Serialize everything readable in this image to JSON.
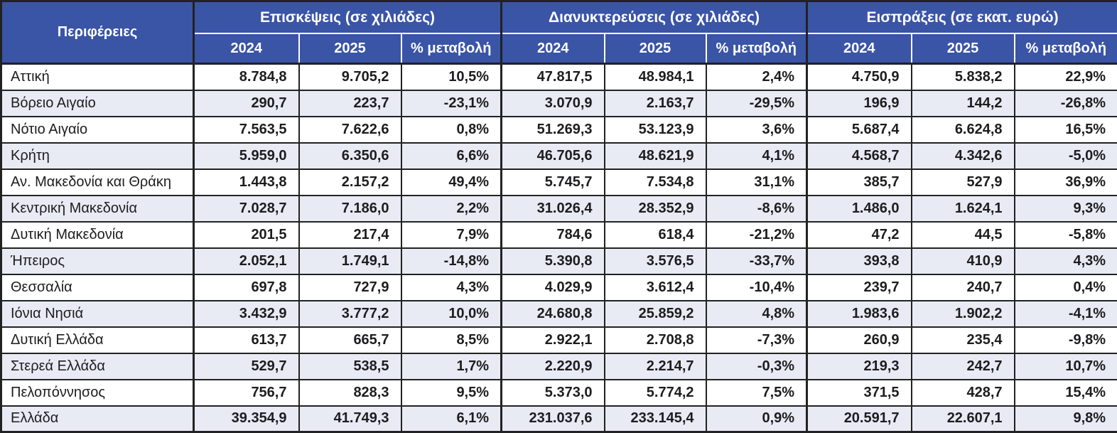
{
  "chart_data": {
    "type": "table",
    "region_header": "Περιφέρειες",
    "groups": [
      {
        "label": "Επισκέψεις (σε χιλιάδες)"
      },
      {
        "label": "Διανυκτερεύσεις (σε χιλιάδες)"
      },
      {
        "label": "Εισπράξεις (σε εκατ. ευρώ)"
      }
    ],
    "sub_headers": [
      "2024",
      "2025",
      "% μεταβολή"
    ],
    "rows": [
      {
        "region": "Αττική",
        "values": [
          "8.784,8",
          "9.705,2",
          "10,5%",
          "47.817,5",
          "48.984,1",
          "2,4%",
          "4.750,9",
          "5.838,2",
          "22,9%"
        ]
      },
      {
        "region": "Βόρειο Αιγαίο",
        "values": [
          "290,7",
          "223,7",
          "-23,1%",
          "3.070,9",
          "2.163,7",
          "-29,5%",
          "196,9",
          "144,2",
          "-26,8%"
        ]
      },
      {
        "region": "Νότιο Αιγαίο",
        "values": [
          "7.563,5",
          "7.622,6",
          "0,8%",
          "51.269,3",
          "53.123,9",
          "3,6%",
          "5.687,4",
          "6.624,8",
          "16,5%"
        ]
      },
      {
        "region": "Κρήτη",
        "values": [
          "5.959,0",
          "6.350,6",
          "6,6%",
          "46.705,6",
          "48.621,9",
          "4,1%",
          "4.568,7",
          "4.342,6",
          "-5,0%"
        ]
      },
      {
        "region": "Αν. Μακεδονία και Θράκη",
        "values": [
          "1.443,8",
          "2.157,2",
          "49,4%",
          "5.745,7",
          "7.534,8",
          "31,1%",
          "385,7",
          "527,9",
          "36,9%"
        ]
      },
      {
        "region": "Κεντρική Μακεδονία",
        "values": [
          "7.028,7",
          "7.186,0",
          "2,2%",
          "31.026,4",
          "28.352,9",
          "-8,6%",
          "1.486,0",
          "1.624,1",
          "9,3%"
        ]
      },
      {
        "region": "Δυτική Μακεδονία",
        "values": [
          "201,5",
          "217,4",
          "7,9%",
          "784,6",
          "618,4",
          "-21,2%",
          "47,2",
          "44,5",
          "-5,8%"
        ]
      },
      {
        "region": "Ήπειρος",
        "values": [
          "2.052,1",
          "1.749,1",
          "-14,8%",
          "5.390,8",
          "3.576,5",
          "-33,7%",
          "393,8",
          "410,9",
          "4,3%"
        ]
      },
      {
        "region": "Θεσσαλία",
        "values": [
          "697,8",
          "727,9",
          "4,3%",
          "4.029,9",
          "3.612,4",
          "-10,4%",
          "239,7",
          "240,7",
          "0,4%"
        ]
      },
      {
        "region": "Ιόνια Νησιά",
        "values": [
          "3.432,9",
          "3.777,2",
          "10,0%",
          "24.680,8",
          "25.859,2",
          "4,8%",
          "1.983,6",
          "1.902,2",
          "-4,1%"
        ]
      },
      {
        "region": "Δυτική Ελλάδα",
        "values": [
          "613,7",
          "665,7",
          "8,5%",
          "2.922,1",
          "2.708,8",
          "-7,3%",
          "260,9",
          "235,4",
          "-9,8%"
        ]
      },
      {
        "region": "Στερεά Ελλάδα",
        "values": [
          "529,7",
          "538,5",
          "1,7%",
          "2.220,9",
          "2.214,7",
          "-0,3%",
          "219,3",
          "242,7",
          "10,7%"
        ]
      },
      {
        "region": "Πελοπόννησος",
        "values": [
          "756,7",
          "828,3",
          "9,5%",
          "5.373,0",
          "5.774,2",
          "7,5%",
          "371,5",
          "428,7",
          "15,4%"
        ]
      },
      {
        "region": "Ελλάδα",
        "values": [
          "39.354,9",
          "41.749,3",
          "6,1%",
          "231.037,6",
          "233.145,4",
          "0,9%",
          "20.591,7",
          "22.607,1",
          "9,8%"
        ]
      }
    ]
  },
  "colors": {
    "header_bg": "#3A54A6",
    "header_text": "#FFFFFF",
    "row_alt_bg": "#E8EBF4",
    "body_text": "#1D1D1F",
    "border": "#222222"
  }
}
